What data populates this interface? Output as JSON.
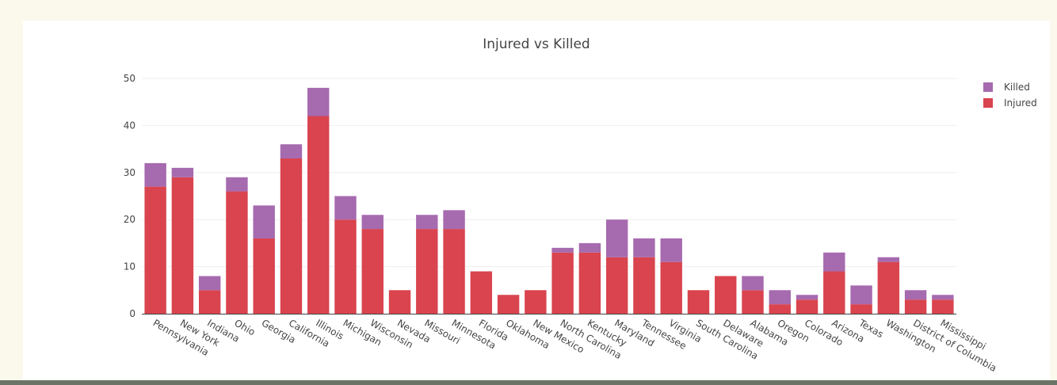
{
  "chart_data": {
    "type": "bar",
    "stacked": true,
    "title": "Injured vs Killed",
    "xlabel": "",
    "ylabel": "",
    "ylim": [
      0,
      50
    ],
    "yticks": [
      0,
      10,
      20,
      30,
      40,
      50
    ],
    "grid": true,
    "legend_position": "top-right",
    "categories": [
      "Pennsylvania",
      "New York",
      "Indiana",
      "Ohio",
      "Georgia",
      "California",
      "Illinois",
      "Michigan",
      "Wisconsin",
      "Nevada",
      "Missouri",
      "Minnesota",
      "Florida",
      "Oklahoma",
      "New Mexico",
      "North Carolina",
      "Kentucky",
      "Maryland",
      "Tennessee",
      "Virginia",
      "South Carolina",
      "Delaware",
      "Alabama",
      "Oregon",
      "Colorado",
      "Arizona",
      "Texas",
      "Washington",
      "District of Columbia",
      "Mississippi"
    ],
    "series": [
      {
        "name": "Injured",
        "color": "#d9444f",
        "values": [
          27,
          29,
          5,
          26,
          16,
          33,
          42,
          20,
          18,
          5,
          18,
          18,
          9,
          4,
          5,
          13,
          13,
          12,
          12,
          11,
          5,
          8,
          5,
          2,
          3,
          9,
          2,
          11,
          3,
          3
        ]
      },
      {
        "name": "Killed",
        "color": "#a66aaf",
        "values": [
          5,
          2,
          3,
          3,
          7,
          3,
          6,
          5,
          3,
          0,
          3,
          4,
          0,
          0,
          0,
          1,
          2,
          8,
          4,
          5,
          0,
          0,
          3,
          3,
          1,
          4,
          4,
          1,
          2,
          1
        ]
      }
    ],
    "legend_order": [
      "Killed",
      "Injured"
    ]
  }
}
